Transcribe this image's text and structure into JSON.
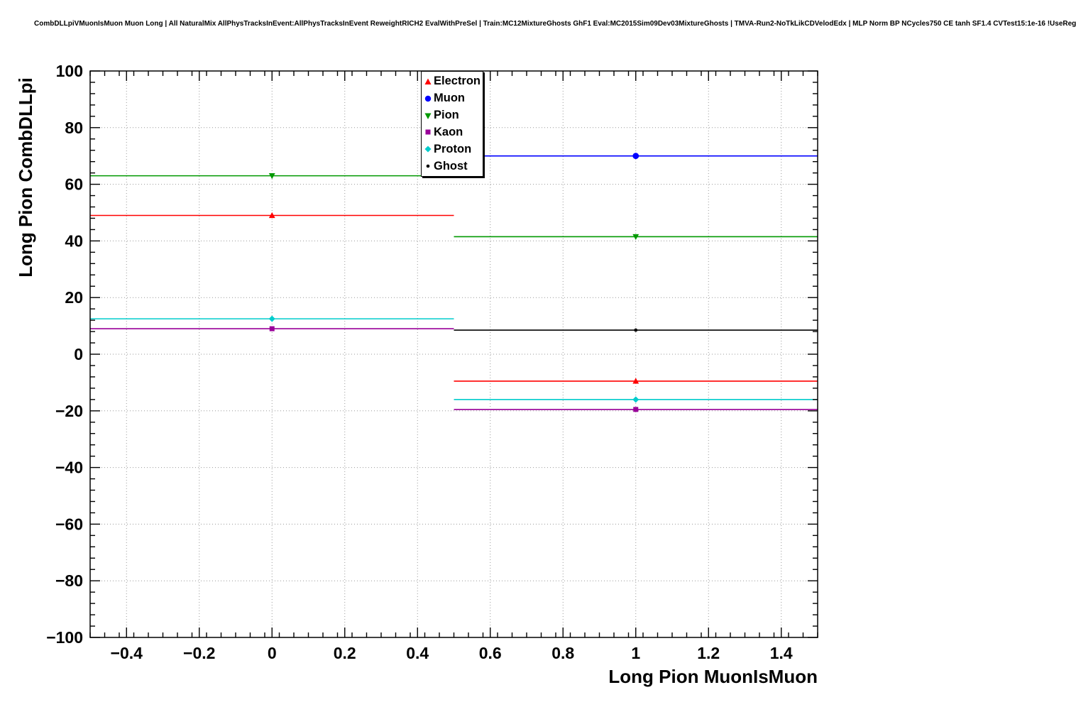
{
  "chart_data": {
    "type": "scatter",
    "title": "CombDLLpiVMuonIsMuon Muon Long | All NaturalMix AllPhysTracksInEvent:AllPhysTracksInEvent ReweightRICH2 EvalWithPreSel | Train:MC12MixtureGhosts GhF1 Eval:MC2015Sim09Dev03MixtureGhosts | TMVA-Run2-NoTkLikCDVelodEdx | MLP Norm BP NCycles750 CE tanh SF1.4 CVTest15:1e-16 !UseReg",
    "xlabel": "Long Pion MuonIsMuon",
    "ylabel": "Long Pion CombDLLpi",
    "xlim": [
      -0.5,
      1.5
    ],
    "ylim": [
      -100,
      100
    ],
    "x_ticks": [
      -0.4,
      -0.2,
      0,
      0.2,
      0.4,
      0.6,
      0.8,
      1,
      1.2,
      1.4
    ],
    "y_ticks": [
      -100,
      -80,
      -60,
      -40,
      -20,
      0,
      20,
      40,
      60,
      80,
      100
    ],
    "x_minor_step": 0.04,
    "y_minor_step": 4,
    "grid": true,
    "grid_color": "#999999",
    "frame_color": "#000000",
    "legend_position": "top-center",
    "series": [
      {
        "name": "Electron",
        "color": "#ff0000",
        "marker": "triangle-up",
        "points": [
          {
            "x": 0,
            "y": 49,
            "xlo": -0.5,
            "xhi": 0.5
          },
          {
            "x": 1,
            "y": -9.5,
            "xlo": 0.5,
            "xhi": 1.5
          }
        ]
      },
      {
        "name": "Muon",
        "color": "#0000ff",
        "marker": "circle",
        "points": [
          {
            "x": 1,
            "y": 70,
            "xlo": 0.5,
            "xhi": 1.5
          }
        ]
      },
      {
        "name": "Pion",
        "color": "#009900",
        "marker": "triangle-down",
        "points": [
          {
            "x": 0,
            "y": 63,
            "xlo": -0.5,
            "xhi": 0.5
          },
          {
            "x": 1,
            "y": 41.5,
            "xlo": 0.5,
            "xhi": 1.5
          }
        ]
      },
      {
        "name": "Kaon",
        "color": "#990099",
        "marker": "square",
        "points": [
          {
            "x": 0,
            "y": 9,
            "xlo": -0.5,
            "xhi": 0.5
          },
          {
            "x": 1,
            "y": -19.5,
            "xlo": 0.5,
            "xhi": 1.5
          }
        ]
      },
      {
        "name": "Proton",
        "color": "#00cccc",
        "marker": "diamond",
        "points": [
          {
            "x": 0,
            "y": 12.5,
            "xlo": -0.5,
            "xhi": 0.5
          },
          {
            "x": 1,
            "y": -16,
            "xlo": 0.5,
            "xhi": 1.5
          }
        ]
      },
      {
        "name": "Ghost",
        "color": "#000000",
        "marker": "dot",
        "points": [
          {
            "x": 1,
            "y": 8.5,
            "xlo": 0.5,
            "xhi": 1.5
          }
        ]
      }
    ]
  }
}
